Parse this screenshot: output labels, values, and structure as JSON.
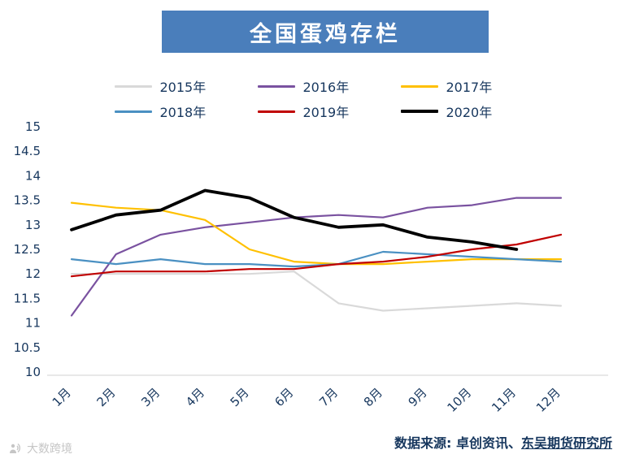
{
  "title": "全国蛋鸡存栏",
  "footer": {
    "prefix": "数据来源: 卓创资讯、",
    "underlined_source": "东吴期货研究所"
  },
  "watermark": "大数跨境",
  "colors": {
    "title_bg": "#4a7ebb",
    "axis_label": "#17375e",
    "axis_line": "#d9d9d9",
    "footer_text": "#17375e",
    "watermark": "#c6c6c6"
  },
  "chart_data": {
    "type": "line",
    "title": "全国蛋鸡存栏",
    "categories": [
      "1月",
      "2月",
      "3月",
      "4月",
      "5月",
      "6月",
      "7月",
      "8月",
      "9月",
      "10月",
      "11月",
      "12月"
    ],
    "series": [
      {
        "name": "2015年",
        "color": "#d9d9d9",
        "emphasis": false,
        "values": [
          12.0,
          12.0,
          12.0,
          12.0,
          12.0,
          12.05,
          11.4,
          11.25,
          11.3,
          11.35,
          11.4,
          11.35
        ]
      },
      {
        "name": "2016年",
        "color": "#7a52a0",
        "emphasis": false,
        "values": [
          11.15,
          12.4,
          12.8,
          12.95,
          13.05,
          13.15,
          13.2,
          13.15,
          13.35,
          13.4,
          13.55,
          13.55
        ]
      },
      {
        "name": "2017年",
        "color": "#ffc000",
        "emphasis": false,
        "values": [
          13.45,
          13.35,
          13.3,
          13.1,
          12.5,
          12.25,
          12.2,
          12.2,
          12.25,
          12.3,
          12.3,
          12.3
        ]
      },
      {
        "name": "2018年",
        "color": "#4a90c2",
        "emphasis": false,
        "values": [
          12.3,
          12.2,
          12.3,
          12.2,
          12.2,
          12.15,
          12.2,
          12.45,
          12.4,
          12.35,
          12.3,
          12.25
        ]
      },
      {
        "name": "2019年",
        "color": "#c00000",
        "emphasis": false,
        "values": [
          11.95,
          12.05,
          12.05,
          12.05,
          12.1,
          12.1,
          12.2,
          12.25,
          12.35,
          12.5,
          12.6,
          12.8
        ]
      },
      {
        "name": "2020年",
        "color": "#000000",
        "emphasis": true,
        "values": [
          12.9,
          13.2,
          13.3,
          13.7,
          13.55,
          13.15,
          12.95,
          13.0,
          12.75,
          12.65,
          12.5,
          null
        ]
      }
    ],
    "ylim": [
      10,
      15
    ],
    "ytick_step": 0.5,
    "xlabel": "",
    "ylabel": "",
    "legend_position": "top",
    "grid": false
  }
}
